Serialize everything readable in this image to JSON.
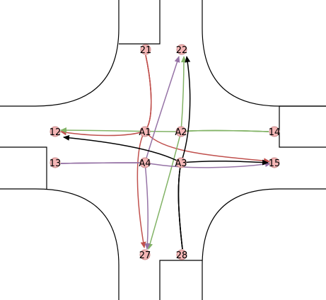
{
  "colors": {
    "red": "#c0504d",
    "green": "#82b366",
    "purple": "#9673a6",
    "black": "#000000",
    "node_fill": "#f4b6b6",
    "node_stroke": "#c88a8a"
  },
  "nodes": {
    "n21": "21",
    "n22": "22",
    "n12": "12",
    "n14": "14",
    "n13": "13",
    "n15": "15",
    "n27": "27",
    "n28": "28",
    "a1": "A1",
    "a2": "A2",
    "a3": "A3",
    "a4": "A4"
  },
  "paths": [
    {
      "from": "21",
      "to": "12",
      "via": "A1",
      "color": "red"
    },
    {
      "from": "21",
      "to": "27",
      "via": "A1",
      "color": "red"
    },
    {
      "from": "21",
      "to": "15",
      "via": "A1",
      "color": "red"
    },
    {
      "from": "14",
      "to": "12",
      "via": "A2",
      "color": "green"
    },
    {
      "from": "14",
      "to": "22",
      "via": "A2",
      "color": "green"
    },
    {
      "from": "14",
      "to": "27",
      "via": "A2",
      "color": "green"
    },
    {
      "from": "13",
      "to": "15",
      "via": "A4",
      "color": "purple"
    },
    {
      "from": "13",
      "to": "22",
      "via": "A4",
      "color": "purple"
    },
    {
      "from": "13",
      "to": "27",
      "via": "A4",
      "color": "purple"
    },
    {
      "from": "28",
      "to": "12",
      "via": "A3",
      "color": "black"
    },
    {
      "from": "28",
      "to": "22",
      "via": "A3",
      "color": "black"
    },
    {
      "from": "28",
      "to": "15",
      "via": "A3",
      "color": "black"
    }
  ]
}
